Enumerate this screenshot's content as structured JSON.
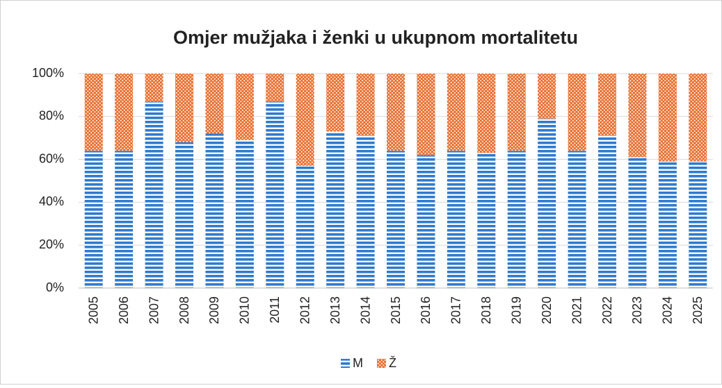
{
  "chart_data": {
    "type": "stacked_bar_100",
    "title": "Omjer mužjaka i ženki u ukupnom mortalitetu",
    "categories": [
      "2005",
      "2006",
      "2007",
      "2008",
      "2009",
      "2010",
      "2011",
      "2012",
      "2013",
      "2014",
      "2015",
      "2016",
      "2017",
      "2018",
      "2019",
      "2020",
      "2021",
      "2022",
      "2023",
      "2024",
      "2025"
    ],
    "series": [
      {
        "name": "M",
        "color": "#2f7bd0",
        "values": [
          64,
          64,
          87,
          68,
          72,
          69,
          87,
          57,
          73,
          71,
          64,
          62,
          64,
          63,
          64,
          79,
          64,
          71,
          61,
          59,
          59
        ]
      },
      {
        "name": "Ž",
        "color": "#e97132",
        "values": [
          36,
          36,
          13,
          32,
          28,
          31,
          13,
          43,
          27,
          29,
          36,
          38,
          36,
          37,
          36,
          21,
          36,
          29,
          39,
          41,
          41
        ]
      }
    ],
    "ylim": [
      0,
      100
    ],
    "yticks": [
      {
        "value": 0,
        "label": "0%"
      },
      {
        "value": 20,
        "label": "20%"
      },
      {
        "value": 40,
        "label": "40%"
      },
      {
        "value": 60,
        "label": "60%"
      },
      {
        "value": 80,
        "label": "80%"
      },
      {
        "value": 100,
        "label": "100%"
      }
    ],
    "grid": true,
    "legend": "bottom"
  }
}
